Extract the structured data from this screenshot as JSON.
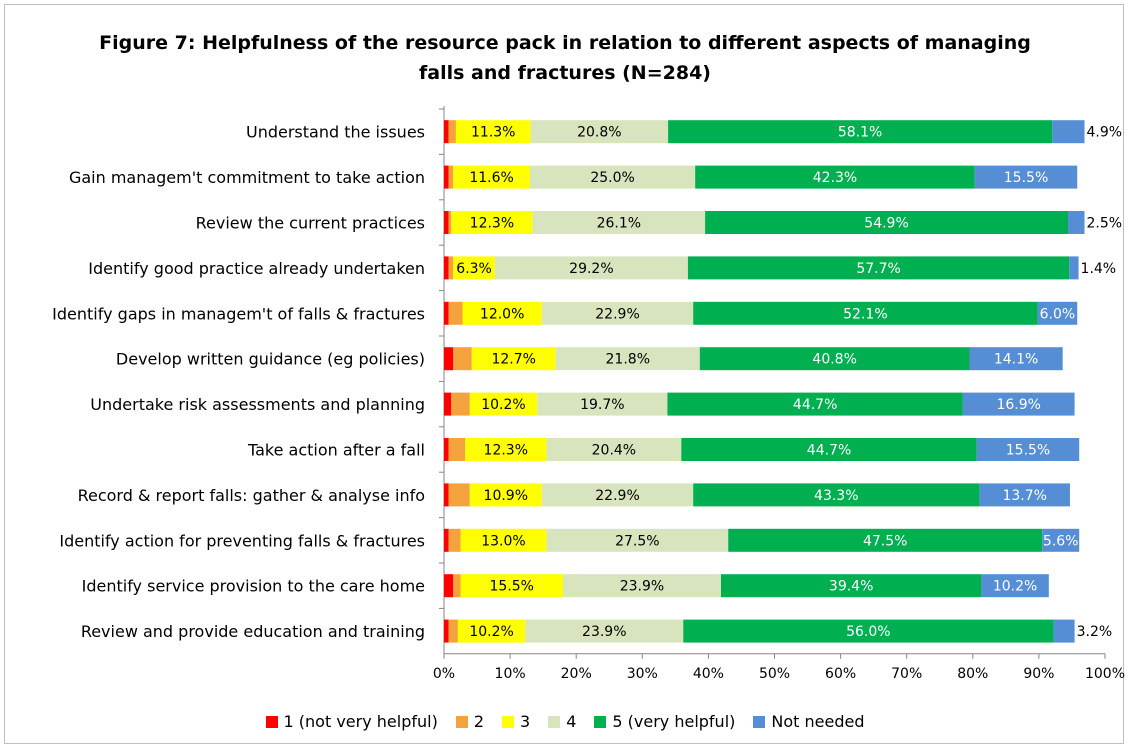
{
  "chart_data": {
    "type": "bar",
    "orientation": "horizontal",
    "stacked": true,
    "title": "Figure 7: Helpfulness of the resource pack in relation to different aspects of managing falls and fractures (N=284)",
    "title_lines": [
      "Figure 7: Helpfulness of the resource pack in relation to different aspects of managing",
      "falls and fractures (N=284)"
    ],
    "categories": [
      "Understand the issues",
      "Gain managem't commitment to take action",
      "Review the current practices",
      "Identify good practice already undertaken",
      "Identify gaps in managem't of falls & fractures",
      "Develop written guidance (eg policies)",
      "Undertake risk assessments and planning",
      "Take action after a fall",
      "Record & report falls: gather & analyse info",
      "Identify action for preventing falls & fractures",
      "Identify service provision to the care home",
      "Review and provide education and training"
    ],
    "series": [
      {
        "name": "1 (not very helpful)",
        "color": "#ff0000",
        "values": [
          0.7,
          0.7,
          0.7,
          0.7,
          0.7,
          1.4,
          1.1,
          0.7,
          0.7,
          0.7,
          1.4,
          0.7
        ]
      },
      {
        "name": "2",
        "color": "#f4a23c",
        "values": [
          1.1,
          0.7,
          0.4,
          0.7,
          2.1,
          2.8,
          2.8,
          2.5,
          3.2,
          1.8,
          1.1,
          1.4
        ]
      },
      {
        "name": "3",
        "color": "#ffff00",
        "values": [
          11.3,
          11.6,
          12.3,
          6.3,
          12.0,
          12.7,
          10.2,
          12.3,
          10.9,
          13.0,
          15.5,
          10.2
        ]
      },
      {
        "name": "4",
        "color": "#d7e4bd",
        "values": [
          20.8,
          25.0,
          26.1,
          29.2,
          22.9,
          21.8,
          19.7,
          20.4,
          22.9,
          27.5,
          23.9,
          23.9
        ]
      },
      {
        "name": "5 (very helpful)",
        "color": "#00b050",
        "values": [
          58.1,
          42.3,
          54.9,
          57.7,
          52.1,
          40.8,
          44.7,
          44.7,
          43.3,
          47.5,
          39.4,
          56.0
        ]
      },
      {
        "name": "Not needed",
        "color": "#558ed5",
        "values": [
          4.9,
          15.5,
          2.5,
          1.4,
          6.0,
          14.1,
          16.9,
          15.5,
          13.7,
          5.6,
          10.2,
          3.2
        ]
      }
    ],
    "labels": [
      [
        null,
        null,
        "11.3%",
        "20.8%",
        "58.1%",
        "4.9%"
      ],
      [
        null,
        null,
        "11.6%",
        "25.0%",
        "42.3%",
        "15.5%"
      ],
      [
        null,
        null,
        "12.3%",
        "26.1%",
        "54.9%",
        "2.5%"
      ],
      [
        null,
        null,
        "6.3%",
        "29.2%",
        "57.7%",
        "1.4%"
      ],
      [
        null,
        null,
        "12.0%",
        "22.9%",
        "52.1%",
        "6.0%"
      ],
      [
        null,
        null,
        "12.7%",
        "21.8%",
        "40.8%",
        "14.1%"
      ],
      [
        null,
        null,
        "10.2%",
        "19.7%",
        "44.7%",
        "16.9%"
      ],
      [
        null,
        null,
        "12.3%",
        "20.4%",
        "44.7%",
        "15.5%"
      ],
      [
        null,
        null,
        "10.9%",
        "22.9%",
        "43.3%",
        "13.7%"
      ],
      [
        null,
        null,
        "13.0%",
        "27.5%",
        "47.5%",
        "5.6%"
      ],
      [
        null,
        null,
        "15.5%",
        "23.9%",
        "39.4%",
        "10.2%"
      ],
      [
        null,
        null,
        "10.2%",
        "23.9%",
        "56.0%",
        "3.2%"
      ]
    ],
    "label_colors": [
      "#000000",
      "#000000",
      "#000000",
      "#000000",
      "#ffffff",
      "#ffffff"
    ],
    "xlim": [
      0,
      100
    ],
    "xticks": [
      0,
      10,
      20,
      30,
      40,
      50,
      60,
      70,
      80,
      90,
      100
    ],
    "xtick_labels": [
      "0%",
      "10%",
      "20%",
      "30%",
      "40%",
      "50%",
      "60%",
      "70%",
      "80%",
      "90%",
      "100%"
    ],
    "grid": false,
    "legend_position": "bottom"
  }
}
